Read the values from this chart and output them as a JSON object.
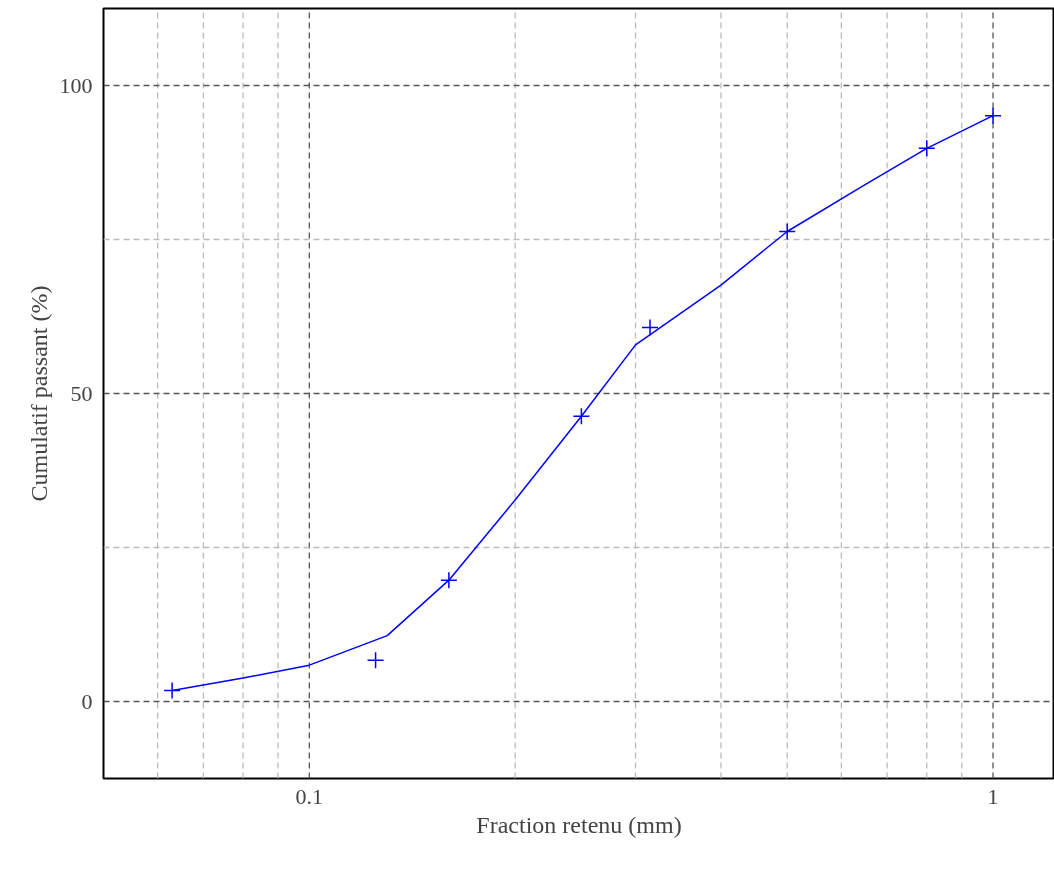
{
  "chart_data": {
    "type": "scatter",
    "xlabel": "Fraction retenu (mm)",
    "ylabel": "Cumulatif passant (%)",
    "log": "x",
    "xlim": [
      0.05,
      1.23
    ],
    "ylim": [
      -12.5,
      112.5
    ],
    "xticks": [
      {
        "value": 0.06,
        "label": null
      },
      {
        "value": 0.07,
        "label": null
      },
      {
        "value": 0.08,
        "label": null
      },
      {
        "value": 0.09,
        "label": null
      },
      0.1,
      {
        "value": 0.2,
        "label": null
      },
      {
        "value": 0.3,
        "label": null
      },
      {
        "value": 0.4,
        "label": null
      },
      {
        "value": 0.5,
        "label": null
      },
      {
        "value": 0.6,
        "label": null
      },
      {
        "value": 0.7,
        "label": null
      },
      {
        "value": 0.8,
        "label": null
      },
      {
        "value": 0.9,
        "label": null
      },
      1
    ],
    "yticks": [
      0,
      {
        "value": 25,
        "label": null
      },
      50,
      {
        "value": 75,
        "label": null
      },
      100
    ],
    "grid": true,
    "series": [
      {
        "type": "line",
        "color": "#0000ff",
        "marker": "none",
        "line_style": "solid",
        "x": [
          0.063,
          0.08,
          0.1,
          0.13,
          0.16,
          0.2,
          0.25,
          0.3,
          0.4,
          0.5,
          0.65,
          0.8,
          1
        ],
        "values": [
          1.8,
          3.8,
          5.9,
          10.7,
          19.7,
          32.7,
          46.3,
          57.9,
          67.6,
          76.3,
          83.9,
          89.8,
          95.1
        ]
      },
      {
        "color": "#0000ff",
        "marker": "cross",
        "x": [
          0.063,
          0.125,
          0.16,
          0.25,
          0.315,
          0.5,
          0.8,
          1
        ],
        "values": [
          1.8,
          6.7,
          19.7,
          46.3,
          60.7,
          76.3,
          89.8,
          95.1
        ]
      }
    ]
  }
}
